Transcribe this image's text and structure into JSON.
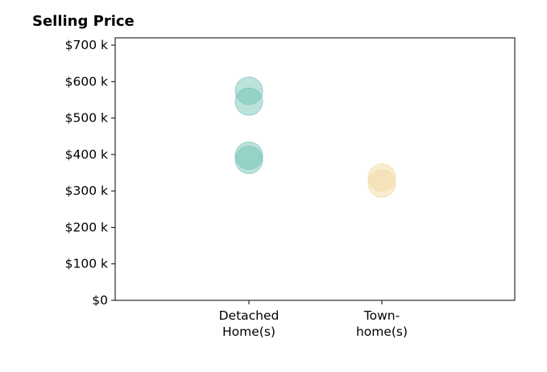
{
  "chart_data": {
    "type": "scatter",
    "title": "Selling Price",
    "xlabel": "",
    "ylabel": "",
    "categories": [
      [
        "Detached",
        "Home(s)"
      ],
      [
        "Town-",
        "home(s)"
      ]
    ],
    "ylim": [
      0,
      720000
    ],
    "yticks": [
      0,
      100000,
      200000,
      300000,
      400000,
      500000,
      600000,
      700000
    ],
    "ytick_labels": [
      "$0",
      "$100 k",
      "$200 k",
      "$300 k",
      "$400 k",
      "$500 k",
      "$600 k",
      "$700 k"
    ],
    "grid": false,
    "series": [
      {
        "category_index": 0,
        "color": "#6abfb0",
        "values": [
          575000,
          545000,
          397000,
          385000
        ]
      },
      {
        "category_index": 1,
        "color": "#f0d79a",
        "values": [
          337000,
          320000
        ]
      }
    ]
  }
}
